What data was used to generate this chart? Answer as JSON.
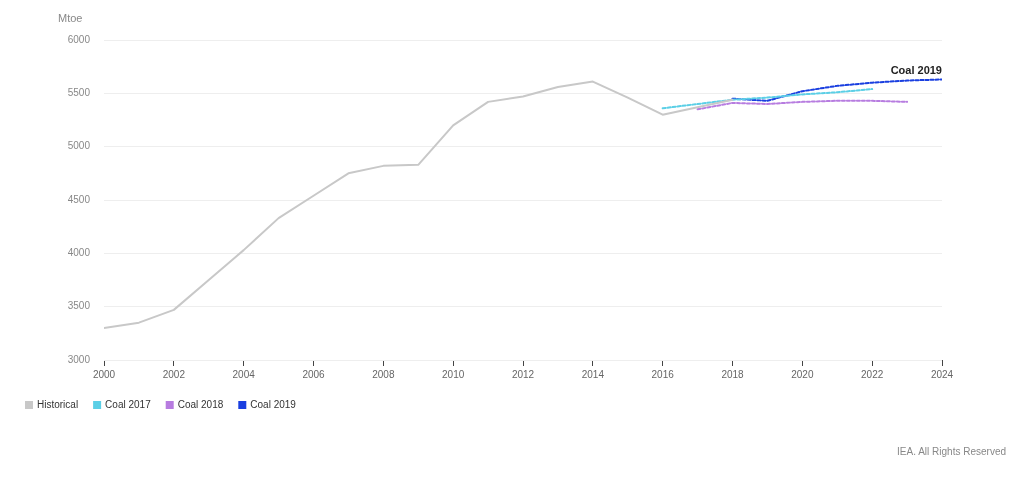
{
  "chart_data": {
    "type": "line",
    "ylabel": "Mtoe",
    "xlim": [
      2000,
      2024
    ],
    "xticks": [
      2000,
      2002,
      2004,
      2006,
      2008,
      2010,
      2012,
      2014,
      2016,
      2018,
      2020,
      2022,
      2024
    ],
    "ylim": [
      3000,
      6000
    ],
    "yticks": [
      3000,
      3500,
      4000,
      4500,
      5000,
      5500,
      6000
    ],
    "grid": "y",
    "legend": "bottom left",
    "marker": "none",
    "series": [
      {
        "name": "Historical",
        "color": "#c8c8c8",
        "line_style": "solid",
        "x": [
          2000,
          2001,
          2002,
          2003,
          2004,
          2005,
          2006,
          2007,
          2008,
          2009,
          2010,
          2011,
          2012,
          2013,
          2014,
          2015,
          2016,
          2017,
          2018
        ],
        "values": [
          3300,
          3350,
          3470,
          3750,
          4030,
          4330,
          4540,
          4750,
          4820,
          4830,
          5200,
          5420,
          5470,
          5560,
          5610,
          5460,
          5300,
          5370,
          5440
        ]
      },
      {
        "name": "Coal 2017",
        "color": "#5bcfe6",
        "line_style": "dotted",
        "x": [
          2016,
          2017,
          2018,
          2019,
          2020,
          2021,
          2022
        ],
        "values": [
          5360,
          5400,
          5440,
          5460,
          5490,
          5510,
          5540
        ]
      },
      {
        "name": "Coal 2018",
        "color": "#b77ce0",
        "line_style": "dotted",
        "x": [
          2017,
          2018,
          2019,
          2020,
          2021,
          2022,
          2023
        ],
        "values": [
          5350,
          5410,
          5400,
          5420,
          5430,
          5430,
          5420
        ]
      },
      {
        "name": "Coal 2019",
        "color": "#1a3fe0",
        "line_style": "dotted",
        "x": [
          2018,
          2019,
          2020,
          2021,
          2022,
          2023,
          2024
        ],
        "values": [
          5450,
          5430,
          5520,
          5570,
          5600,
          5620,
          5630
        ]
      }
    ],
    "annotations": [
      {
        "text": "Coal 2019",
        "x": 2024,
        "y": 5630
      },
      "IEA. All Rights Reserved"
    ]
  }
}
